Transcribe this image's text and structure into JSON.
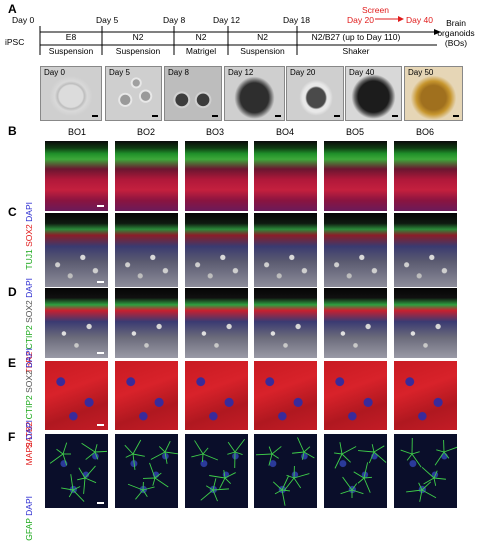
{
  "panels": {
    "a": "A",
    "b": "B",
    "c": "C",
    "d": "D",
    "e": "E",
    "f": "F"
  },
  "timeline": {
    "days": [
      "Day 0",
      "Day 5",
      "Day 8",
      "Day 12",
      "Day 18"
    ],
    "red_days": [
      "Day 20",
      "Day 40"
    ],
    "screen_label": "Screen",
    "iPSC": "iPSC",
    "media": [
      "E8",
      "N2",
      "N2",
      "N2",
      "N2/B27 (up to Day 110)"
    ],
    "conditions": [
      "Suspension",
      "Suspension",
      "Matrigel",
      "Suspension",
      "Shaker"
    ],
    "result": [
      "Brain",
      "organoids",
      "(BOs)"
    ]
  },
  "thumbs": [
    "Day 0",
    "Day 5",
    "Day 8",
    "Day 12",
    "Day 20",
    "Day 40",
    "Day 50"
  ],
  "columns": [
    "BO1",
    "BO2",
    "BO3",
    "BO4",
    "BO5",
    "BO6"
  ],
  "rows": {
    "b": [
      {
        "text": "TUJ1",
        "color": "#1aa81a"
      },
      {
        "text": " SOX2",
        "color": "#e01b1b"
      },
      {
        "text": " DAPI",
        "color": "#2a2ad0"
      }
    ],
    "c": [
      {
        "text": "TBR2",
        "color": "#e01b1b"
      },
      {
        "text": " CTIP2",
        "color": "#1aa81a"
      },
      {
        "text": " SOX2",
        "color": "#555555"
      },
      {
        "text": " DAPI",
        "color": "#2a2ad0"
      }
    ],
    "d": [
      {
        "text": "SATB2",
        "color": "#e01b1b"
      },
      {
        "text": " CTIP2",
        "color": "#1aa81a"
      },
      {
        "text": " SOX2",
        "color": "#555555"
      },
      {
        "text": " DAPI",
        "color": "#2a2ad0"
      }
    ],
    "e": [
      {
        "text": "MAP2",
        "color": "#e01b1b"
      },
      {
        "text": " DAPI",
        "color": "#2a2ad0"
      }
    ],
    "f": [
      {
        "text": "GFAP",
        "color": "#1aa81a"
      },
      {
        "text": " DAPI",
        "color": "#2a2ad0"
      }
    ]
  }
}
